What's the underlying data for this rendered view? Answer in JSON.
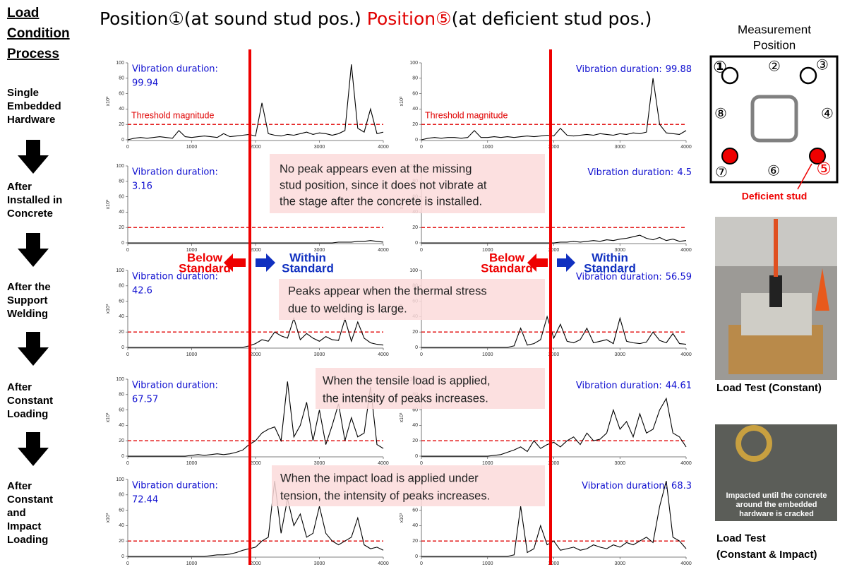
{
  "header": {
    "process_title": [
      "Load",
      "Condition",
      "Process"
    ],
    "position1": "Position①",
    "position1_note": "(at sound stud pos.)",
    "position5": "Position⑤",
    "position5_note": "(at deficient stud pos.)"
  },
  "stages": [
    [
      "Single",
      "Embedded",
      "Hardware"
    ],
    [
      "After",
      "Installed in",
      "Concrete"
    ],
    [
      "After the",
      "Support",
      "Welding"
    ],
    [
      "After",
      "Constant",
      "Loading"
    ],
    [
      "After",
      "Constant",
      "and",
      "Impact",
      "Loading"
    ]
  ],
  "annotations": [
    {
      "lines": [
        "No peak appears even at the missing",
        "stud position, since it does not vibrate at",
        "the stage after the concrete is installed."
      ]
    },
    {
      "lines": [
        "Peaks appear when the thermal stress",
        "due to welding is large."
      ]
    },
    {
      "lines": [
        "When the tensile load is applied,",
        "the intensity of peaks increases."
      ]
    },
    {
      "lines": [
        "When the impact load is applied under",
        "tension, the intensity of peaks increases."
      ]
    }
  ],
  "standards": [
    {
      "below": [
        "Below",
        "Standard"
      ],
      "within": [
        "Within",
        "Standard"
      ]
    },
    {
      "below": [
        "Below",
        "Standard"
      ],
      "within": [
        "Within",
        "Standard"
      ]
    }
  ],
  "measurement": {
    "title": [
      "Measurement",
      "Position"
    ],
    "labels": [
      "①",
      "②",
      "③",
      "④",
      "⑤",
      "⑥",
      "⑦",
      "⑧"
    ],
    "deficient": "Deficient stud"
  },
  "photos": {
    "caption1": "Load Test (Constant)",
    "overlay": [
      "Impacted until the concrete",
      "around the embedded",
      "hardware is cracked"
    ],
    "caption2": [
      "Load Test",
      "(Constant & Impact)"
    ]
  },
  "chart_data": [
    {
      "type": "line",
      "color": "#000000",
      "threshold": 20,
      "threshold_color": "#e00000",
      "threshold_label": "Threshold magnitude",
      "duration_label": "Vibration duration:",
      "duration": 99.94,
      "ylabel": "x10³",
      "xlim": [
        0,
        4000
      ],
      "ylim": [
        0,
        100
      ],
      "xticks": [
        0,
        1000,
        2000,
        3000,
        4000
      ],
      "yticks": [
        0,
        20,
        40,
        60,
        80,
        100
      ],
      "x": [
        0,
        100,
        200,
        300,
        400,
        500,
        600,
        700,
        800,
        900,
        1000,
        1100,
        1200,
        1300,
        1400,
        1500,
        1600,
        1700,
        1800,
        1900,
        2000,
        2100,
        2200,
        2300,
        2400,
        2500,
        2600,
        2700,
        2800,
        2900,
        3000,
        3100,
        3200,
        3300,
        3400,
        3500,
        3600,
        3700,
        3800,
        3900,
        4000
      ],
      "values": [
        0,
        2,
        3,
        2,
        3,
        4,
        3,
        2,
        12,
        4,
        3,
        4,
        5,
        4,
        3,
        8,
        4,
        5,
        6,
        7,
        5,
        48,
        8,
        6,
        5,
        7,
        6,
        8,
        10,
        7,
        9,
        8,
        6,
        8,
        12,
        98,
        15,
        10,
        40,
        8,
        10
      ]
    },
    {
      "type": "line",
      "color": "#000000",
      "threshold": 20,
      "threshold_color": "#e00000",
      "threshold_label": "Threshold magnitude",
      "duration_label": "Vibration duration:",
      "duration": 99.88,
      "ylabel": "x10³",
      "xlim": [
        0,
        4000
      ],
      "ylim": [
        0,
        100
      ],
      "xticks": [
        0,
        1000,
        2000,
        3000,
        4000
      ],
      "yticks": [
        0,
        20,
        40,
        60,
        80,
        100
      ],
      "x": [
        0,
        100,
        200,
        300,
        400,
        500,
        600,
        700,
        800,
        900,
        1000,
        1100,
        1200,
        1300,
        1400,
        1500,
        1600,
        1700,
        1800,
        1900,
        2000,
        2100,
        2200,
        2300,
        2400,
        2500,
        2600,
        2700,
        2800,
        2900,
        3000,
        3100,
        3200,
        3300,
        3400,
        3500,
        3600,
        3700,
        3800,
        3900,
        4000
      ],
      "values": [
        0,
        2,
        3,
        2,
        3,
        3,
        2,
        3,
        12,
        3,
        3,
        4,
        3,
        4,
        3,
        4,
        5,
        4,
        5,
        6,
        5,
        15,
        6,
        5,
        6,
        7,
        6,
        8,
        7,
        6,
        8,
        7,
        9,
        8,
        10,
        80,
        20,
        9,
        8,
        7,
        12
      ]
    },
    {
      "type": "line",
      "color": "#000000",
      "threshold": 20,
      "threshold_color": "#e00000",
      "duration_label": "Vibration duration:",
      "duration": 3.16,
      "ylabel": "x10³",
      "xlim": [
        0,
        4000
      ],
      "ylim": [
        0,
        100
      ],
      "xticks": [
        0,
        1000,
        2000,
        3000,
        4000
      ],
      "yticks": [
        0,
        20,
        40,
        60,
        80,
        100
      ],
      "x": [
        0,
        100,
        200,
        300,
        400,
        500,
        600,
        700,
        800,
        900,
        1000,
        1100,
        1200,
        1300,
        1400,
        1500,
        1600,
        1700,
        1800,
        1900,
        2000,
        2100,
        2200,
        2300,
        2400,
        2500,
        2600,
        2700,
        2800,
        2900,
        3000,
        3100,
        3200,
        3300,
        3400,
        3500,
        3600,
        3700,
        3800,
        3900,
        4000
      ],
      "values": [
        0,
        0,
        0,
        0,
        0,
        0,
        0,
        0,
        0,
        0,
        0,
        0,
        0,
        0,
        0,
        0,
        0,
        0,
        0,
        0,
        0,
        0,
        0,
        0,
        0,
        0,
        0,
        0,
        0,
        0,
        0,
        0,
        0,
        1,
        1,
        1,
        2,
        2,
        3,
        2,
        1
      ]
    },
    {
      "type": "line",
      "color": "#000000",
      "threshold": 20,
      "threshold_color": "#e00000",
      "duration_label": "Vibration duration:",
      "duration": 4.5,
      "ylabel": "x10³",
      "xlim": [
        0,
        4000
      ],
      "ylim": [
        0,
        100
      ],
      "xticks": [
        0,
        1000,
        2000,
        3000,
        4000
      ],
      "yticks": [
        0,
        20,
        40,
        60,
        80,
        100
      ],
      "x": [
        0,
        100,
        200,
        300,
        400,
        500,
        600,
        700,
        800,
        900,
        1000,
        1100,
        1200,
        1300,
        1400,
        1500,
        1600,
        1700,
        1800,
        1900,
        2000,
        2100,
        2200,
        2300,
        2400,
        2500,
        2600,
        2700,
        2800,
        2900,
        3000,
        3100,
        3200,
        3300,
        3400,
        3500,
        3600,
        3700,
        3800,
        3900,
        4000
      ],
      "values": [
        0,
        0,
        0,
        0,
        0,
        0,
        0,
        0,
        0,
        0,
        0,
        0,
        0,
        0,
        0,
        0,
        0,
        0,
        0,
        0,
        0,
        1,
        1,
        2,
        1,
        2,
        3,
        2,
        4,
        3,
        5,
        6,
        8,
        10,
        6,
        4,
        7,
        3,
        5,
        2,
        3
      ]
    },
    {
      "type": "line",
      "color": "#000000",
      "threshold": 20,
      "threshold_color": "#e00000",
      "duration_label": "Vibration duration:",
      "duration": 42.6,
      "ylabel": "x10³",
      "xlim": [
        0,
        4000
      ],
      "ylim": [
        0,
        100
      ],
      "xticks": [
        0,
        1000,
        2000,
        3000,
        4000
      ],
      "yticks": [
        0,
        20,
        40,
        60,
        80,
        100
      ],
      "x": [
        0,
        100,
        200,
        300,
        400,
        500,
        600,
        700,
        800,
        900,
        1000,
        1100,
        1200,
        1300,
        1400,
        1500,
        1600,
        1700,
        1800,
        1900,
        2000,
        2100,
        2200,
        2300,
        2400,
        2500,
        2600,
        2700,
        2800,
        2900,
        3000,
        3100,
        3200,
        3300,
        3400,
        3500,
        3600,
        3700,
        3800,
        3900,
        4000
      ],
      "values": [
        0,
        0,
        0,
        0,
        0,
        0,
        0,
        0,
        0,
        0,
        0,
        0,
        0,
        0,
        0,
        0,
        0,
        0,
        0,
        2,
        5,
        10,
        8,
        20,
        15,
        12,
        38,
        10,
        18,
        12,
        8,
        14,
        10,
        9,
        37,
        8,
        33,
        12,
        6,
        4,
        3
      ]
    },
    {
      "type": "line",
      "color": "#000000",
      "threshold": 20,
      "threshold_color": "#e00000",
      "duration_label": "Vibration duration:",
      "duration": 56.59,
      "ylabel": "x10³",
      "xlim": [
        0,
        4000
      ],
      "ylim": [
        0,
        100
      ],
      "xticks": [
        0,
        1000,
        2000,
        3000,
        4000
      ],
      "yticks": [
        0,
        20,
        40,
        60,
        80,
        100
      ],
      "x": [
        0,
        100,
        200,
        300,
        400,
        500,
        600,
        700,
        800,
        900,
        1000,
        1100,
        1200,
        1300,
        1400,
        1500,
        1600,
        1700,
        1800,
        1900,
        2000,
        2100,
        2200,
        2300,
        2400,
        2500,
        2600,
        2700,
        2800,
        2900,
        3000,
        3100,
        3200,
        3300,
        3400,
        3500,
        3600,
        3700,
        3800,
        3900,
        4000
      ],
      "values": [
        0,
        0,
        0,
        0,
        0,
        0,
        0,
        0,
        0,
        0,
        0,
        0,
        0,
        0,
        2,
        25,
        3,
        5,
        10,
        40,
        12,
        30,
        8,
        6,
        10,
        25,
        6,
        8,
        10,
        5,
        38,
        8,
        6,
        5,
        7,
        20,
        9,
        6,
        18,
        5,
        4
      ]
    },
    {
      "type": "line",
      "color": "#000000",
      "threshold": 20,
      "threshold_color": "#e00000",
      "duration_label": "Vibration duration:",
      "duration": 67.57,
      "ylabel": "x10³",
      "xlim": [
        0,
        4000
      ],
      "ylim": [
        0,
        100
      ],
      "xticks": [
        0,
        1000,
        2000,
        3000,
        4000
      ],
      "yticks": [
        0,
        20,
        40,
        60,
        80,
        100
      ],
      "x": [
        0,
        100,
        200,
        300,
        400,
        500,
        600,
        700,
        800,
        900,
        1000,
        1100,
        1200,
        1300,
        1400,
        1500,
        1600,
        1700,
        1800,
        1900,
        2000,
        2100,
        2200,
        2300,
        2400,
        2500,
        2600,
        2700,
        2800,
        2900,
        3000,
        3100,
        3200,
        3300,
        3400,
        3500,
        3600,
        3700,
        3800,
        3900,
        4000
      ],
      "values": [
        0,
        0,
        0,
        0,
        0,
        0,
        0,
        0,
        0,
        0,
        1,
        2,
        1,
        2,
        3,
        2,
        3,
        5,
        8,
        15,
        20,
        30,
        35,
        38,
        20,
        97,
        25,
        40,
        70,
        20,
        60,
        15,
        40,
        68,
        20,
        50,
        25,
        30,
        90,
        15,
        10
      ]
    },
    {
      "type": "line",
      "color": "#000000",
      "threshold": 20,
      "threshold_color": "#e00000",
      "duration_label": "Vibration duration:",
      "duration": 44.61,
      "ylabel": "x10³",
      "xlim": [
        0,
        4000
      ],
      "ylim": [
        0,
        100
      ],
      "xticks": [
        0,
        1000,
        2000,
        3000,
        4000
      ],
      "yticks": [
        0,
        20,
        40,
        60,
        80,
        100
      ],
      "x": [
        0,
        100,
        200,
        300,
        400,
        500,
        600,
        700,
        800,
        900,
        1000,
        1100,
        1200,
        1300,
        1400,
        1500,
        1600,
        1700,
        1800,
        1900,
        2000,
        2100,
        2200,
        2300,
        2400,
        2500,
        2600,
        2700,
        2800,
        2900,
        3000,
        3100,
        3200,
        3300,
        3400,
        3500,
        3600,
        3700,
        3800,
        3900,
        4000
      ],
      "values": [
        0,
        0,
        0,
        0,
        0,
        0,
        0,
        0,
        0,
        0,
        0,
        1,
        2,
        5,
        8,
        12,
        6,
        20,
        10,
        15,
        18,
        12,
        20,
        25,
        15,
        30,
        20,
        22,
        30,
        60,
        35,
        45,
        25,
        55,
        30,
        35,
        60,
        75,
        30,
        25,
        12
      ]
    },
    {
      "type": "line",
      "color": "#000000",
      "threshold": 20,
      "threshold_color": "#e00000",
      "duration_label": "Vibration duration:",
      "duration": 72.44,
      "ylabel": "x10³",
      "xlim": [
        0,
        4000
      ],
      "ylim": [
        0,
        100
      ],
      "xticks": [
        0,
        1000,
        2000,
        3000,
        4000
      ],
      "yticks": [
        0,
        20,
        40,
        60,
        80,
        100
      ],
      "x": [
        0,
        100,
        200,
        300,
        400,
        500,
        600,
        700,
        800,
        900,
        1000,
        1100,
        1200,
        1300,
        1400,
        1500,
        1600,
        1700,
        1800,
        1900,
        2000,
        2100,
        2200,
        2300,
        2400,
        2500,
        2600,
        2700,
        2800,
        2900,
        3000,
        3100,
        3200,
        3300,
        3400,
        3500,
        3600,
        3700,
        3800,
        3900,
        4000
      ],
      "values": [
        0,
        0,
        0,
        0,
        0,
        0,
        0,
        0,
        0,
        0,
        0,
        0,
        0,
        1,
        2,
        2,
        3,
        5,
        8,
        10,
        12,
        20,
        25,
        98,
        30,
        75,
        40,
        55,
        25,
        30,
        65,
        30,
        20,
        15,
        20,
        25,
        50,
        15,
        10,
        12,
        8
      ]
    },
    {
      "type": "line",
      "color": "#000000",
      "threshold": 20,
      "threshold_color": "#e00000",
      "duration_label": "Vibration duration:",
      "duration": 68.3,
      "ylabel": "x10³",
      "xlim": [
        0,
        4000
      ],
      "ylim": [
        0,
        100
      ],
      "xticks": [
        0,
        1000,
        2000,
        3000,
        4000
      ],
      "yticks": [
        0,
        20,
        40,
        60,
        80,
        100
      ],
      "x": [
        0,
        100,
        200,
        300,
        400,
        500,
        600,
        700,
        800,
        900,
        1000,
        1100,
        1200,
        1300,
        1400,
        1500,
        1600,
        1700,
        1800,
        1900,
        2000,
        2100,
        2200,
        2300,
        2400,
        2500,
        2600,
        2700,
        2800,
        2900,
        3000,
        3100,
        3200,
        3300,
        3400,
        3500,
        3600,
        3700,
        3800,
        3900,
        4000
      ],
      "values": [
        0,
        0,
        0,
        0,
        0,
        0,
        0,
        0,
        0,
        0,
        0,
        0,
        0,
        0,
        2,
        65,
        5,
        10,
        40,
        15,
        20,
        8,
        10,
        12,
        8,
        10,
        15,
        12,
        10,
        15,
        12,
        18,
        15,
        20,
        25,
        18,
        65,
        98,
        25,
        20,
        10
      ]
    }
  ]
}
